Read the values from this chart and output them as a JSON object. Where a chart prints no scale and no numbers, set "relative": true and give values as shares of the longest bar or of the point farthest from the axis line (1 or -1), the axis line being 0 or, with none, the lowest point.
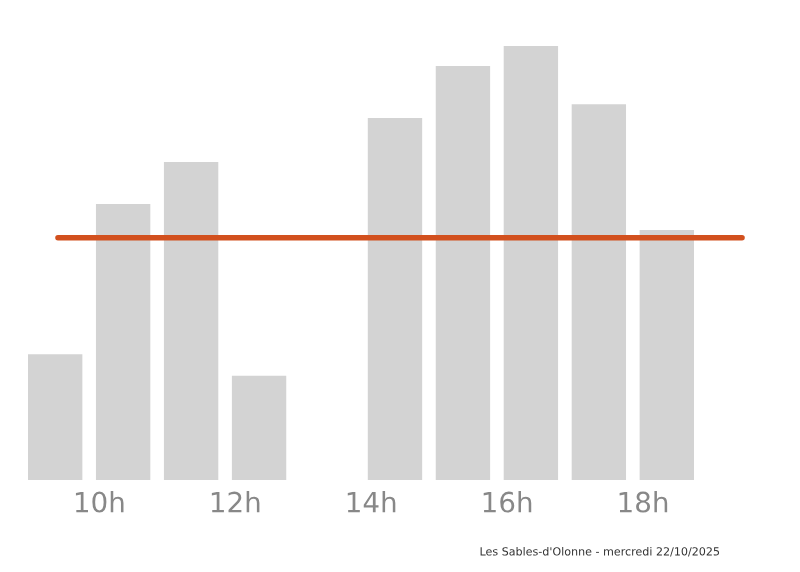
{
  "chart_data": {
    "type": "bar",
    "relative": true,
    "x": [
      9.35,
      10.35,
      11.35,
      12.35,
      14.35,
      15.35,
      16.35,
      17.35,
      18.35
    ],
    "xlim": [
      8.95,
      18.75
    ],
    "values": [
      0.29,
      0.636,
      0.733,
      0.24,
      0.834,
      0.954,
      1,
      0.866,
      0.576
    ],
    "color": "#d3d3d3",
    "xticks": [
      {
        "value": 10,
        "label": "10h"
      },
      {
        "value": 12,
        "label": "12h"
      },
      {
        "value": 14,
        "label": "14h"
      },
      {
        "value": 16,
        "label": "16h"
      },
      {
        "value": 18,
        "label": "18h"
      }
    ],
    "ref_lines": [
      {
        "axis": "y",
        "value": 0.558,
        "color": "#d2501e"
      }
    ],
    "grid": false,
    "annotations": [
      "Les Sables-d'Olonne - mercredi 22/10/2025"
    ]
  }
}
